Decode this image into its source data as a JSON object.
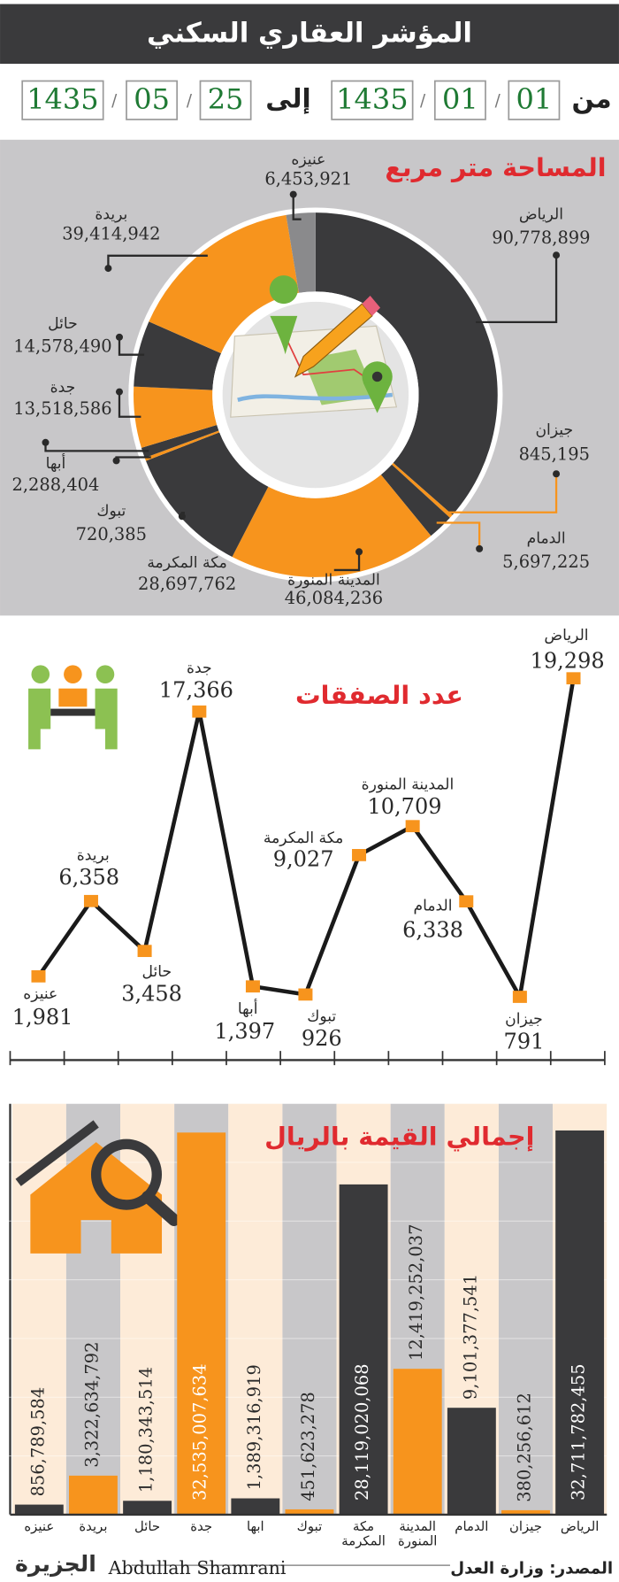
{
  "header": {
    "title": "المؤشر العقاري السكني",
    "from": "من",
    "to": "إلى",
    "separator": "/",
    "start": [
      "01",
      "01",
      "1435"
    ],
    "end": [
      "25",
      "05",
      "1435"
    ]
  },
  "chart_data": [
    {
      "type": "donut",
      "title": "المساحة متر مربع",
      "categories": [
        "الرياض",
        "جيزان",
        "الدمام",
        "المدينة المنورة",
        "مكة المكرمة",
        "تبوك",
        "أبها",
        "جدة",
        "حائل",
        "بريدة",
        "عنيزه"
      ],
      "values": [
        90778899,
        845195,
        5697225,
        46084236,
        28697762,
        720385,
        2288404,
        13518586,
        14578490,
        39414942,
        6453921
      ],
      "value_labels": [
        "90,778,899",
        "845,195",
        "5,697,225",
        "46,084,236",
        "28,697,762",
        "720,385",
        "2,288,404",
        "13,518,586",
        "14,578,490",
        "39,414,942",
        "6,453,921"
      ],
      "colors": [
        "#3a3a3c",
        "#f7941d",
        "#3a3a3c",
        "#f7941d",
        "#3a3a3c",
        "#f7941d",
        "#3a3a3c",
        "#f7941d",
        "#3a3a3c",
        "#f7941d",
        "#8a8a8c"
      ]
    },
    {
      "type": "line",
      "title": "عدد الصفقات",
      "categories": [
        "عنيزه",
        "بريدة",
        "حائل",
        "جدة",
        "أبها",
        "تبوك",
        "مكة المكرمة",
        "المدينة المنورة",
        "الدمام",
        "جيزان",
        "الرياض"
      ],
      "values": [
        1981,
        6358,
        3458,
        17366,
        1397,
        926,
        9027,
        10709,
        6338,
        791,
        19298
      ],
      "value_labels": [
        "1,981",
        "6,358",
        "3,458",
        "17,366",
        "1,397",
        "926",
        "9,027",
        "10,709",
        "6,338",
        "791",
        "19,298"
      ],
      "ylim": [
        0,
        20000
      ],
      "color": "#1a1a1a",
      "marker_color": "#f7941d"
    },
    {
      "type": "bar",
      "title": "إجمالي القيمة بالريال",
      "categories": [
        "عنيزه",
        "بريدة",
        "حائل",
        "جدة",
        "أبها",
        "تبوك",
        "مكة المكرمة",
        "المدينة المنورة",
        "الدمام",
        "جيزان",
        "الرياض"
      ],
      "values": [
        856789584,
        3322634792,
        1180343514,
        32535007634,
        1389316919,
        451623278,
        28119020068,
        12419252037,
        9101377541,
        380256612,
        32711782455
      ],
      "value_labels": [
        "856,789,584",
        "3,322,634,792",
        "1,180,343,514",
        "32,535,007,634",
        "1,389,316,919",
        "451,623,278",
        "28,119,020,068",
        "12,419,252,037",
        "9,101,377,541",
        "380,256,612",
        "32,711,782,455"
      ],
      "colors": [
        "#3a3a3c",
        "#f7941d",
        "#3a3a3c",
        "#f7941d",
        "#3a3a3c",
        "#f7941d",
        "#3a3a3c",
        "#f7941d",
        "#3a3a3c",
        "#f7941d",
        "#3a3a3c"
      ],
      "ylim": [
        0,
        35000000000
      ],
      "yticks": [
        0,
        5000000000,
        10000000000,
        15000000000,
        20000000000,
        25000000000,
        30000000000,
        35000000000
      ],
      "grid": true
    }
  ],
  "footer": {
    "source": "المصدر: وزارة العدل",
    "author": "Abdullah Shamrani",
    "logo": "الجزيرة"
  }
}
